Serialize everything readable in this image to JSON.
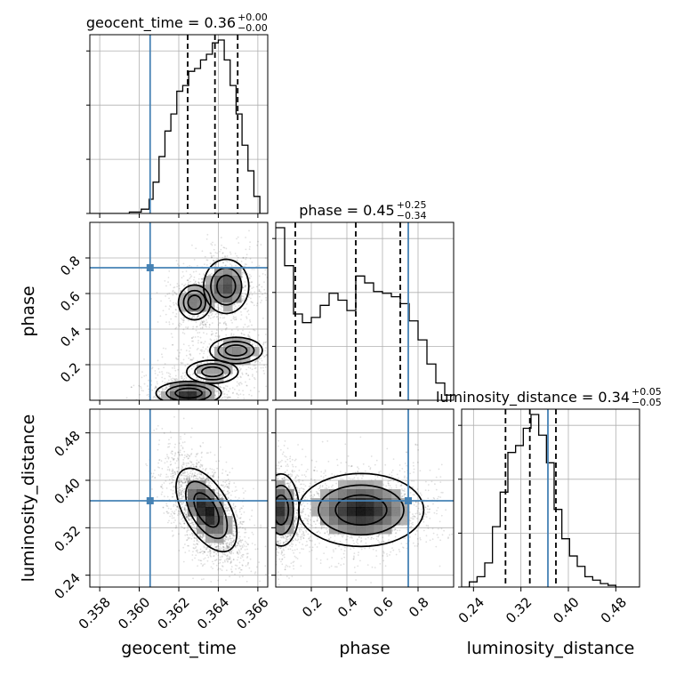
{
  "chart_data": {
    "type": "corner",
    "colors": {
      "truth": "#4682b4",
      "hist": "#000000",
      "grid": "#b0b0b0",
      "quantile": "#000000"
    },
    "parameters": [
      {
        "name": "geocent_time",
        "axis_label": "geocent_time",
        "title": {
          "text": "geocent_time = 0.36",
          "sup": "+0.00",
          "sub": "−0.00"
        },
        "range": [
          0.3575,
          0.3665
        ],
        "ticks": [
          0.358,
          0.36,
          0.362,
          0.364,
          0.366
        ],
        "tick_labels": [
          "0.358",
          "0.360",
          "0.362",
          "0.364",
          "0.366"
        ],
        "truth": 0.36055,
        "quantiles": [
          0.36245,
          0.36383,
          0.36498
        ],
        "hist": {
          "edges": [
            0.3575,
            0.3585,
            0.3595,
            0.3601,
            0.3605,
            0.3607,
            0.361,
            0.3613,
            0.3616,
            0.3619,
            0.3622,
            0.3625,
            0.3628,
            0.3631,
            0.3634,
            0.3637,
            0.364,
            0.3643,
            0.3646,
            0.3649,
            0.3652,
            0.3655,
            0.3658,
            0.3661,
            0.3665
          ],
          "counts": [
            0,
            0,
            1,
            3,
            10,
            22,
            40,
            58,
            70,
            86,
            90,
            100,
            102,
            108,
            112,
            120,
            122,
            108,
            90,
            70,
            48,
            30,
            12,
            0
          ]
        }
      },
      {
        "name": "phase",
        "axis_label": "phase",
        "title": {
          "text": "phase = 0.45",
          "sup": "+0.25",
          "sub": "−0.34"
        },
        "range": [
          0.0,
          1.0
        ],
        "ticks": [
          0.2,
          0.4,
          0.6,
          0.8
        ],
        "tick_labels": [
          "0.2",
          "0.4",
          "0.6",
          "0.8"
        ],
        "truth": 0.745,
        "quantiles": [
          0.11,
          0.45,
          0.7
        ],
        "hist": {
          "edges": [
            0.0,
            0.05,
            0.1,
            0.15,
            0.2,
            0.25,
            0.3,
            0.35,
            0.4,
            0.45,
            0.5,
            0.55,
            0.6,
            0.65,
            0.7,
            0.75,
            0.8,
            0.85,
            0.9,
            0.95,
            1.0
          ],
          "counts": [
            100,
            78,
            50,
            45,
            48,
            55,
            62,
            58,
            52,
            72,
            68,
            63,
            62,
            60,
            56,
            46,
            35,
            21,
            10,
            3
          ]
        }
      },
      {
        "name": "luminosity_distance",
        "axis_label": "luminosity_distance",
        "title": {
          "text": "luminosity_distance = 0.34",
          "sup": "+0.05",
          "sub": "−0.05"
        },
        "range": [
          0.22,
          0.52
        ],
        "ticks": [
          0.24,
          0.32,
          0.4,
          0.48
        ],
        "tick_labels": [
          "0.24",
          "0.32",
          "0.40",
          "0.48"
        ],
        "truth": 0.3655,
        "quantiles": [
          0.294,
          0.335,
          0.379
        ],
        "hist": {
          "edges": [
            0.22,
            0.233,
            0.246,
            0.259,
            0.272,
            0.285,
            0.298,
            0.311,
            0.324,
            0.337,
            0.35,
            0.363,
            0.376,
            0.389,
            0.402,
            0.415,
            0.428,
            0.441,
            0.454,
            0.467,
            0.48,
            0.493,
            0.506,
            0.52
          ],
          "counts": [
            0,
            3,
            6,
            14,
            35,
            55,
            78,
            82,
            92,
            100,
            88,
            72,
            45,
            28,
            18,
            12,
            6,
            4,
            2,
            1,
            0,
            0,
            0
          ]
        }
      }
    ],
    "pairs": [
      {
        "x": "geocent_time",
        "y": "phase",
        "modes": [
          {
            "mx": 0.3625,
            "my": 0.04,
            "sx": 0.00075,
            "sy": 0.03,
            "w": 1.0
          },
          {
            "mx": 0.3628,
            "my": 0.55,
            "sx": 0.0005,
            "sy": 0.06,
            "w": 0.55
          },
          {
            "mx": 0.3644,
            "my": 0.64,
            "sx": 0.0006,
            "sy": 0.08,
            "w": 0.75
          },
          {
            "mx": 0.3649,
            "my": 0.28,
            "sx": 0.0009,
            "sy": 0.05,
            "w": 0.45
          },
          {
            "mx": 0.3637,
            "my": 0.16,
            "sx": 0.001,
            "sy": 0.05,
            "w": 0.35
          }
        ]
      },
      {
        "x": "geocent_time",
        "y": "luminosity_distance",
        "modes": [
          {
            "mx": 0.3634,
            "my": 0.35,
            "sx": 0.0007,
            "sy": 0.032,
            "w": 1.0,
            "rho": -0.55
          }
        ]
      },
      {
        "x": "phase",
        "y": "luminosity_distance",
        "modes": [
          {
            "mx": 0.03,
            "my": 0.35,
            "sx": 0.05,
            "sy": 0.03,
            "w": 0.85
          },
          {
            "mx": 0.48,
            "my": 0.35,
            "sx": 0.16,
            "sy": 0.028,
            "w": 1.0
          }
        ]
      }
    ],
    "truth_point": {
      "geocent_time": 0.36055,
      "phase": 0.745,
      "luminosity_distance": 0.3655
    },
    "grid": true
  }
}
